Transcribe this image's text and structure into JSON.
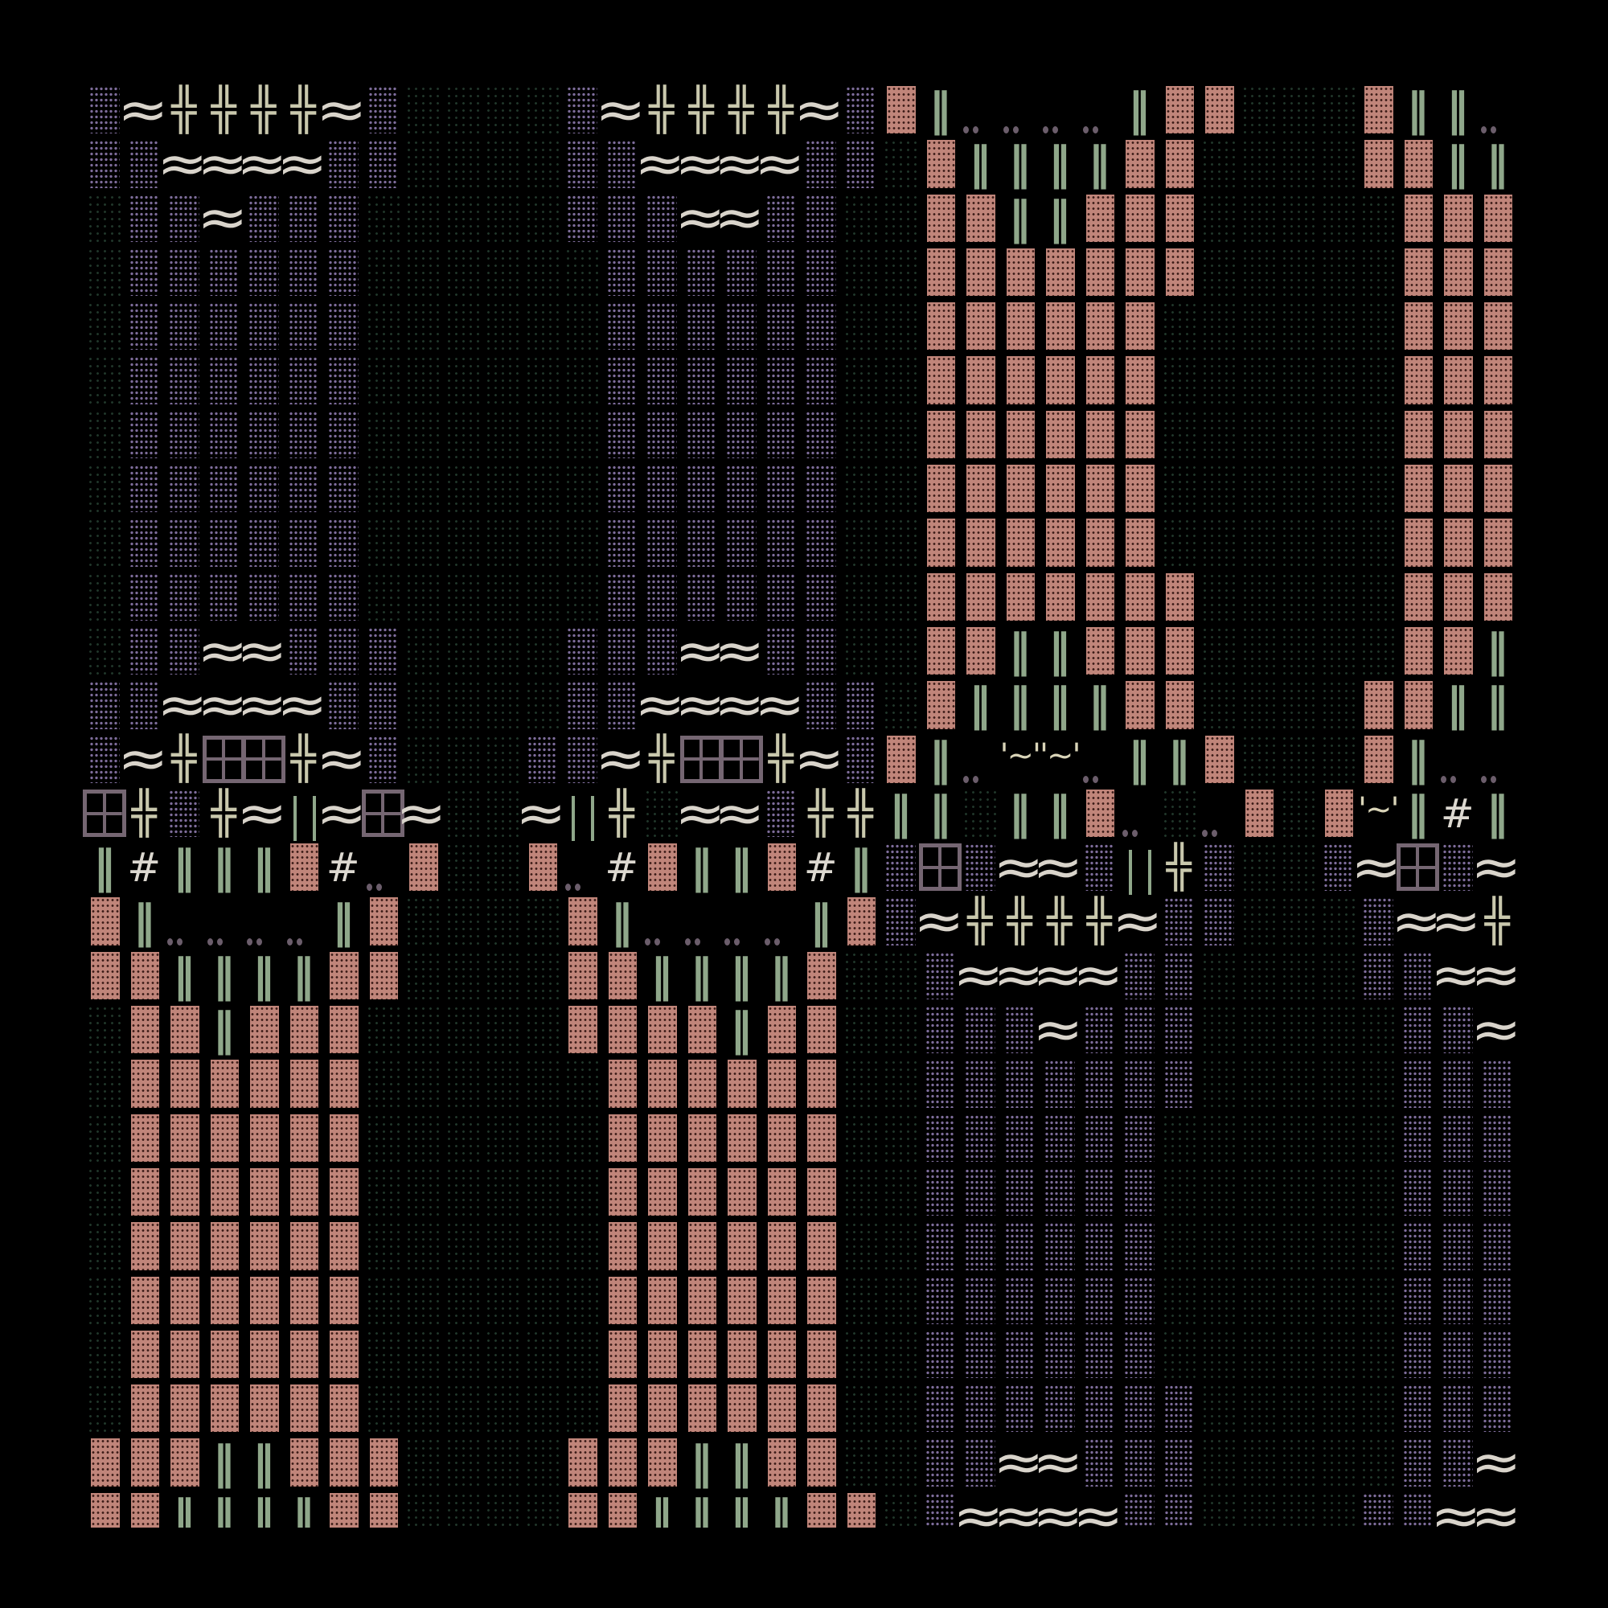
{
  "colors": {
    "background": "#000000",
    "floor_dots": "#20362a",
    "lavender_tile": "#7d6c9a",
    "pink_brick": "#c0857a",
    "wave": "#d9d4cb",
    "cross": "#c9c8ad",
    "bar": "#8fa78a",
    "window": "#756672"
  },
  "legend": {
    "G": {
      "tile": "floor",
      "glyph": ""
    },
    "L": {
      "tile": "lavender-block",
      "glyph": ""
    },
    "P": {
      "tile": "pink-brick",
      "glyph": ""
    },
    "w": {
      "tile": "water-wave",
      "glyph": "≈"
    },
    "+": {
      "tile": "double-cross",
      "glyph": "╬"
    },
    "|": {
      "tile": "double-bar",
      "glyph": "‖"
    },
    "s": {
      "tile": "split-bar",
      "glyph": ""
    },
    "#": {
      "tile": "hash",
      "glyph": "#"
    },
    ".": {
      "tile": "dots",
      "glyph": ""
    },
    "W": {
      "tile": "window",
      "glyph": ""
    },
    "t": {
      "tile": "tilde-quote",
      "glyph": "'~'"
    }
  },
  "map": {
    "rows": [
      "Lw++++wLGGGGLw++++wLP|....|PPGGGP||.",
      "LLwwwwLLGGGGLLwwwwLLGP||||PPGGGGPP||",
      "GLLwLLLGGGGGLLLwwLLGGPP||PPPGGGGGPPP",
      "GLLLLLLGGGGGGLLLLLLGGPPPPPPPGGGGGPPP",
      "GLLLLLLGGGGGGLLLLLLGGPPPPPPGGGGGGPPP",
      "GLLLLLLGGGGGGLLLLLLGGPPPPPPGGGGGGPPP",
      "GLLLLLLGGGGGGLLLLLLGGPPPPPPGGGGGGPPP",
      "GLLLLLLGGGGGGLLLLLLGGPPPPPPGGGGGGPPP",
      "GLLLLLLGGGGGGLLLLLLGGPPPPPPGGGGGGPPP",
      "GLLLLLLGGGGGGLLLLLLGGPPPPPPPGGGGGPPP",
      "GLLwwLLLGGGGLLLwwLLGGPP||PPPGGGGGPP|",
      "LLwwwwLLGGGGLLwwwwLLGP||||PPGGGGPP||",
      "Lw+WW+wLGGGLLw+WW+wLP|.tt.||PGGGP|..",
      "W+L+wswWwGGws+GwwL++||G||P.G.PGPt|#|",
      "|#|||P#.PGGP.#P||P#|LWLwwLs+LGGLwWLw",
      "P|....|PGGGGP|....|PLw++++wLLGGGLww+",
      "PP||||PPGGGGPP||||PGGLwwwwLLGGGGLLww",
      "GPP|PPPGGGGGPPPP|PPGGLLLwLLLGGGGGLLw",
      "GPPPPPPGGGGGGPPPPPPGGLLLLLLLGGGGGLLL",
      "GPPPPPPGGGGGGPPPPPPGGLLLLLLGGGGGGLLL",
      "GPPPPPPGGGGGGPPPPPPGGLLLLLLGGGGGGLLL",
      "GPPPPPPGGGGGGPPPPPPGGLLLLLLGGGGGGLLL",
      "GPPPPPPGGGGGGPPPPPPGGLLLLLLGGGGGGLLL",
      "GPPPPPPGGGGGGPPPPPPGGLLLLLLGGGGGGLLL",
      "GPPPPPPGGGGGGPPPPPPGGLLLLLLLGGGGGLLL",
      "PPP||PPPGGGGPPP||PPGGLLwwLLLGGGGGLLw",
      "PP||||PPGGGGPP||||PPGLwwwwLLGGGGLLww"
    ]
  }
}
